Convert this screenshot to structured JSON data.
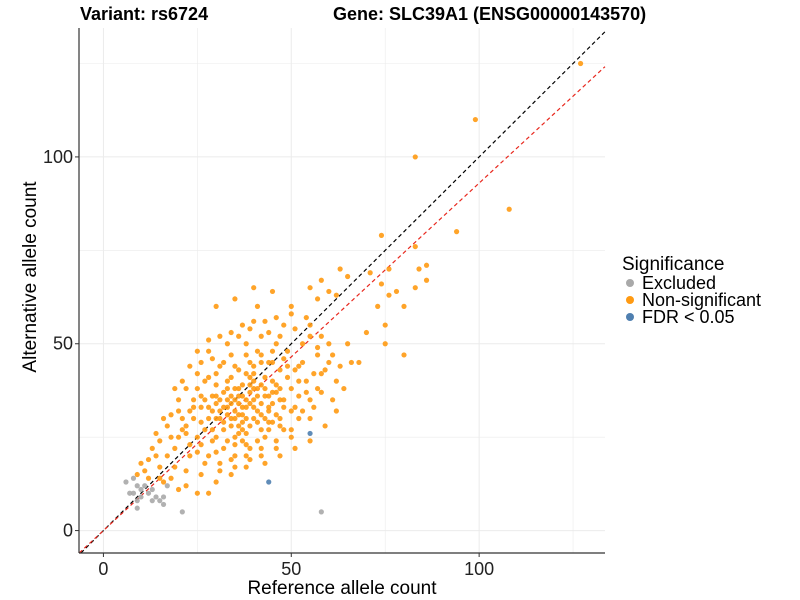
{
  "titles": {
    "variant": "Variant: rs6724",
    "gene": "Gene: SLC39A1 (ENSG00000143570)"
  },
  "chart_data": {
    "type": "scatter",
    "xlabel": "Reference allele count",
    "ylabel": "Alternative allele count",
    "xlim": [
      -6.5,
      133.5
    ],
    "ylim": [
      -6,
      134.5
    ],
    "x_ticks": [
      0,
      50,
      100
    ],
    "y_ticks": [
      0,
      50,
      100
    ],
    "grid": true,
    "legend": {
      "title": "Significance",
      "position": "right",
      "entries": [
        {
          "label": "Excluded",
          "color": "#a9a9a9"
        },
        {
          "label": "Non-significant",
          "color": "#ff9a12"
        },
        {
          "label": "FDR < 0.05",
          "color": "#4f7fb0"
        }
      ]
    },
    "reference_lines": [
      {
        "kind": "identity",
        "slope": 1,
        "intercept": 0,
        "color": "#000000",
        "style": "dashed"
      },
      {
        "kind": "fit",
        "slope": 0.93,
        "intercept": 0,
        "color": "#e8281e",
        "style": "dashed"
      }
    ],
    "excluded_points": [
      [
        6,
        13
      ],
      [
        7,
        10
      ],
      [
        8,
        10
      ],
      [
        8,
        14
      ],
      [
        9,
        8
      ],
      [
        9,
        12
      ],
      [
        10,
        11
      ],
      [
        10,
        9
      ],
      [
        11,
        12
      ],
      [
        12,
        10
      ],
      [
        13,
        8
      ],
      [
        13,
        11
      ],
      [
        14,
        9
      ],
      [
        15,
        8
      ],
      [
        16,
        9
      ],
      [
        16,
        7
      ],
      [
        17,
        12
      ],
      [
        21,
        5
      ],
      [
        58,
        5
      ],
      [
        9,
        6
      ]
    ],
    "significant_points": [
      [
        55,
        26
      ],
      [
        44,
        13
      ]
    ],
    "nonsignificant_points": [
      [
        127,
        125
      ],
      [
        99,
        110
      ],
      [
        83,
        100
      ],
      [
        108,
        86
      ],
      [
        94,
        80
      ],
      [
        74,
        79
      ],
      [
        83,
        76
      ],
      [
        84,
        70
      ],
      [
        86,
        67
      ],
      [
        86,
        71
      ],
      [
        76,
        70
      ],
      [
        71,
        69
      ],
      [
        74,
        66
      ],
      [
        76,
        63
      ],
      [
        73,
        60
      ],
      [
        75,
        55
      ],
      [
        75,
        50
      ],
      [
        80,
        47
      ],
      [
        70,
        53
      ],
      [
        68,
        45
      ],
      [
        65,
        68
      ],
      [
        63,
        70
      ],
      [
        60,
        64
      ],
      [
        58,
        67
      ],
      [
        57,
        62
      ],
      [
        83,
        65
      ],
      [
        80,
        60
      ],
      [
        78,
        64
      ],
      [
        62,
        63
      ],
      [
        55,
        65
      ],
      [
        40,
        65
      ],
      [
        35,
        62
      ],
      [
        30,
        60
      ],
      [
        45,
        64
      ],
      [
        41,
        60
      ],
      [
        55,
        55
      ],
      [
        60,
        50
      ],
      [
        65,
        50
      ],
      [
        58,
        42
      ],
      [
        62,
        40
      ],
      [
        66,
        45
      ],
      [
        52,
        30
      ],
      [
        55,
        30
      ],
      [
        61,
        35
      ],
      [
        50,
        25
      ],
      [
        46,
        22
      ],
      [
        42,
        20
      ],
      [
        38,
        17
      ],
      [
        34,
        15
      ],
      [
        30,
        13
      ],
      [
        28,
        10
      ],
      [
        25,
        10
      ],
      [
        22,
        12
      ],
      [
        20,
        11
      ],
      [
        18,
        14
      ],
      [
        16,
        13
      ],
      [
        15,
        17
      ],
      [
        14,
        20
      ],
      [
        13,
        22
      ],
      [
        12,
        14
      ],
      [
        11,
        16
      ],
      [
        17,
        20
      ],
      [
        19,
        22
      ],
      [
        20,
        25
      ],
      [
        22,
        28
      ],
      [
        24,
        30
      ],
      [
        18,
        25
      ],
      [
        17,
        28
      ],
      [
        16,
        30
      ],
      [
        15,
        24
      ],
      [
        60,
        45
      ],
      [
        57,
        47
      ],
      [
        53,
        50
      ],
      [
        48,
        55
      ],
      [
        50,
        58
      ],
      [
        45,
        45
      ],
      [
        40,
        40
      ],
      [
        35,
        35
      ],
      [
        30,
        30
      ],
      [
        25,
        25
      ],
      [
        42,
        45
      ],
      [
        38,
        42
      ],
      [
        33,
        38
      ],
      [
        28,
        33
      ],
      [
        32,
        45
      ],
      [
        28,
        48
      ],
      [
        25,
        42
      ],
      [
        22,
        38
      ],
      [
        20,
        35
      ],
      [
        19,
        38
      ],
      [
        26,
        36
      ],
      [
        36,
        28
      ],
      [
        40,
        30
      ],
      [
        44,
        32
      ],
      [
        48,
        35
      ],
      [
        52,
        40
      ],
      [
        47,
        28
      ],
      [
        43,
        25
      ],
      [
        39,
        22
      ],
      [
        35,
        20
      ],
      [
        31,
        18
      ],
      [
        27,
        18
      ],
      [
        23,
        20
      ],
      [
        30,
        25
      ],
      [
        34,
        30
      ],
      [
        37,
        33
      ],
      [
        41,
        36
      ],
      [
        45,
        40
      ],
      [
        49,
        44
      ],
      [
        36,
        38
      ],
      [
        31,
        35
      ],
      [
        29,
        27
      ],
      [
        33,
        24
      ],
      [
        37,
        27
      ],
      [
        41,
        29
      ],
      [
        45,
        34
      ],
      [
        39,
        37
      ],
      [
        43,
        41
      ],
      [
        47,
        38
      ],
      [
        51,
        33
      ],
      [
        54,
        37
      ],
      [
        56,
        42
      ],
      [
        53,
        45
      ],
      [
        49,
        48
      ],
      [
        46,
        50
      ],
      [
        42,
        52
      ],
      [
        38,
        50
      ],
      [
        34,
        47
      ],
      [
        30,
        42
      ],
      [
        27,
        40
      ],
      [
        24,
        35
      ],
      [
        21,
        30
      ],
      [
        23,
        32
      ],
      [
        26,
        29
      ],
      [
        29,
        24
      ],
      [
        32,
        22
      ],
      [
        35,
        25
      ],
      [
        38,
        26
      ],
      [
        42,
        34
      ],
      [
        44,
        36
      ],
      [
        46,
        31
      ],
      [
        40,
        33
      ],
      [
        37,
        31
      ],
      [
        34,
        34
      ],
      [
        31,
        32
      ],
      [
        28,
        30
      ],
      [
        27,
        27
      ],
      [
        30,
        36
      ],
      [
        33,
        40
      ],
      [
        36,
        43
      ],
      [
        39,
        45
      ],
      [
        42,
        47
      ],
      [
        45,
        48
      ],
      [
        48,
        46
      ],
      [
        51,
        43
      ],
      [
        54,
        40
      ],
      [
        57,
        38
      ],
      [
        55,
        35
      ],
      [
        52,
        36
      ],
      [
        50,
        32
      ],
      [
        47,
        30
      ],
      [
        44,
        27
      ],
      [
        41,
        24
      ],
      [
        38,
        23
      ],
      [
        35,
        23
      ],
      [
        32,
        27
      ],
      [
        29,
        32
      ],
      [
        26,
        33
      ],
      [
        25,
        38
      ],
      [
        28,
        41
      ],
      [
        31,
        44
      ],
      [
        34,
        41
      ],
      [
        37,
        39
      ],
      [
        40,
        42
      ],
      [
        43,
        38
      ],
      [
        46,
        37
      ],
      [
        49,
        41
      ],
      [
        52,
        44
      ],
      [
        50,
        38
      ],
      [
        47,
        43
      ],
      [
        44,
        45
      ],
      [
        41,
        48
      ],
      [
        38,
        47
      ],
      [
        35,
        44
      ],
      [
        32,
        37
      ],
      [
        36,
        36
      ],
      [
        39,
        34
      ],
      [
        42,
        31
      ],
      [
        45,
        29
      ],
      [
        48,
        27
      ],
      [
        36,
        31
      ],
      [
        33,
        31
      ],
      [
        30,
        34
      ],
      [
        27,
        35
      ],
      [
        24,
        33
      ],
      [
        22,
        26
      ],
      [
        26,
        23
      ],
      [
        30,
        21
      ],
      [
        34,
        19
      ],
      [
        38,
        20
      ],
      [
        42,
        22
      ],
      [
        46,
        24
      ],
      [
        50,
        27
      ],
      [
        53,
        32
      ],
      [
        56,
        33
      ],
      [
        58,
        37
      ],
      [
        59,
        43
      ],
      [
        57,
        49
      ],
      [
        55,
        52
      ],
      [
        51,
        54
      ],
      [
        47,
        52
      ],
      [
        43,
        56
      ],
      [
        39,
        54
      ],
      [
        36,
        52
      ],
      [
        33,
        50
      ],
      [
        29,
        46
      ],
      [
        26,
        45
      ],
      [
        23,
        44
      ],
      [
        21,
        40
      ],
      [
        20,
        32
      ],
      [
        21,
        27
      ],
      [
        23,
        23
      ],
      [
        25,
        21
      ],
      [
        28,
        20
      ],
      [
        31,
        16
      ],
      [
        35,
        17
      ],
      [
        39,
        19
      ],
      [
        43,
        18
      ],
      [
        47,
        20
      ],
      [
        51,
        22
      ],
      [
        55,
        24
      ],
      [
        59,
        28
      ],
      [
        62,
        32
      ],
      [
        64,
        38
      ],
      [
        63,
        44
      ],
      [
        61,
        47
      ],
      [
        58,
        52
      ],
      [
        54,
        57
      ],
      [
        50,
        60
      ],
      [
        46,
        57
      ],
      [
        44,
        53
      ],
      [
        40,
        56
      ],
      [
        37,
        55
      ],
      [
        34,
        53
      ],
      [
        31,
        52
      ],
      [
        28,
        51
      ],
      [
        25,
        48
      ],
      [
        18,
        31
      ],
      [
        14,
        26
      ],
      [
        12,
        19
      ],
      [
        9,
        15
      ],
      [
        10,
        18
      ],
      [
        15,
        14
      ],
      [
        19,
        17
      ],
      [
        22,
        16
      ],
      [
        26,
        15
      ],
      [
        32,
        29
      ],
      [
        33,
        33
      ],
      [
        34,
        36
      ],
      [
        35,
        32
      ],
      [
        36,
        34
      ],
      [
        37,
        36
      ],
      [
        38,
        30
      ],
      [
        39,
        28
      ],
      [
        40,
        35
      ],
      [
        41,
        38
      ],
      [
        42,
        39
      ],
      [
        43,
        36
      ],
      [
        44,
        33
      ],
      [
        45,
        37
      ],
      [
        46,
        39
      ],
      [
        47,
        35
      ],
      [
        48,
        33
      ],
      [
        38,
        35
      ],
      [
        37,
        29
      ],
      [
        35,
        38
      ],
      [
        34,
        28
      ],
      [
        33,
        35
      ],
      [
        32,
        33
      ],
      [
        31,
        30
      ],
      [
        30,
        39
      ],
      [
        29,
        36
      ],
      [
        39,
        41
      ],
      [
        40,
        38
      ],
      [
        41,
        32
      ],
      [
        42,
        27
      ],
      [
        43,
        30
      ],
      [
        44,
        29
      ],
      [
        35,
        30
      ],
      [
        36,
        26
      ],
      [
        37,
        24
      ],
      [
        38,
        33
      ],
      [
        39,
        39
      ],
      [
        40,
        44
      ]
    ]
  }
}
